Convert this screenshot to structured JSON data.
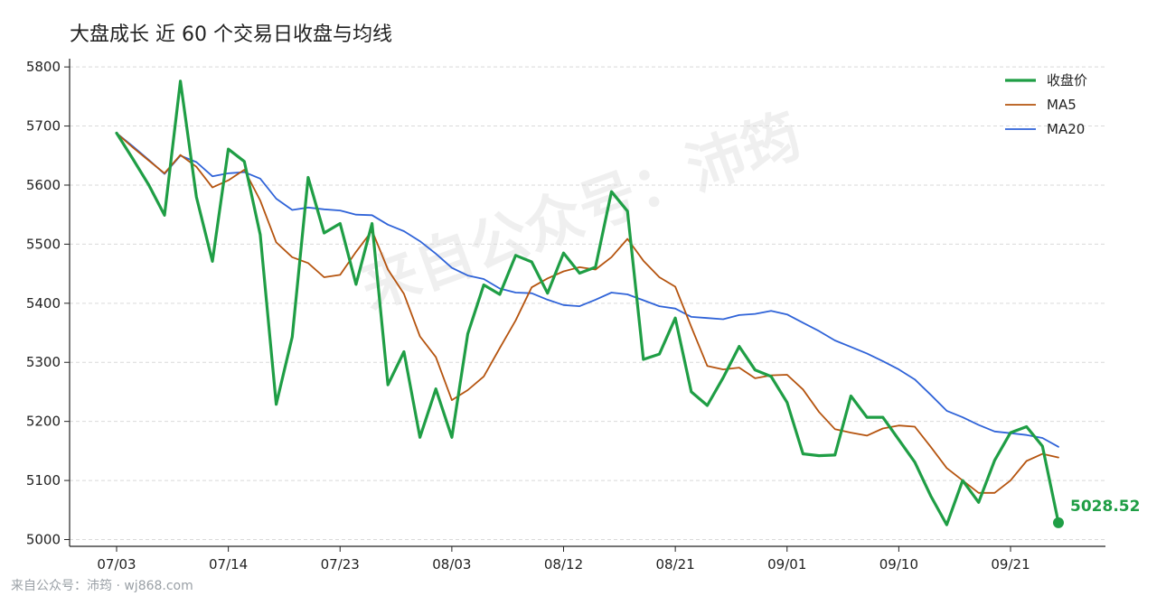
{
  "chart_data": {
    "type": "line",
    "title": "大盘成长 近 60 个交易日收盘与均线",
    "xlabel": "",
    "ylabel": "",
    "ylim": [
      4990,
      5815
    ],
    "yticks": [
      5000,
      5100,
      5200,
      5300,
      5400,
      5500,
      5600,
      5700,
      5800
    ],
    "xticks": [
      {
        "index": 0,
        "label": "07/03"
      },
      {
        "index": 7,
        "label": "07/14"
      },
      {
        "index": 14,
        "label": "07/23"
      },
      {
        "index": 21,
        "label": "08/03"
      },
      {
        "index": 28,
        "label": "08/12"
      },
      {
        "index": 35,
        "label": "08/21"
      },
      {
        "index": 42,
        "label": "09/01"
      },
      {
        "index": 49,
        "label": "09/10"
      },
      {
        "index": 56,
        "label": "09/21"
      }
    ],
    "grid": "horizontal dashed",
    "legend_position": "top-right",
    "series": [
      {
        "name": "收盘价",
        "color": "#1f9e45",
        "width": 3.2,
        "values": [
          5688,
          5645,
          5601,
          5549,
          5776,
          5580,
          5471,
          5661,
          5640,
          5516,
          5229,
          5343,
          5613,
          5519,
          5535,
          5432,
          5535,
          5262,
          5318,
          5173,
          5255,
          5173,
          5348,
          5431,
          5415,
          5481,
          5470,
          5417,
          5485,
          5451,
          5461,
          5589,
          5556,
          5305,
          5314,
          5375,
          5250,
          5227,
          5274,
          5327,
          5287,
          5276,
          5232,
          5145,
          5142,
          5143,
          5243,
          5207,
          5207,
          5169,
          5131,
          5074,
          5025,
          5100,
          5063,
          5134,
          5181,
          5191,
          5158,
          5028.52
        ]
      },
      {
        "name": "MA5",
        "color": "#b5540f",
        "width": 1.8,
        "values": [
          5688,
          5664,
          5642,
          5620,
          5651,
          5631,
          5596,
          5608,
          5626,
          5574,
          5503,
          5478,
          5468,
          5444,
          5448,
          5487,
          5523,
          5457,
          5416,
          5344,
          5309,
          5236,
          5253,
          5276,
          5324,
          5371,
          5427,
          5442,
          5454,
          5461,
          5457,
          5478,
          5509,
          5472,
          5444,
          5428,
          5360,
          5294,
          5288,
          5291,
          5273,
          5278,
          5279,
          5254,
          5216,
          5187,
          5181,
          5176,
          5188,
          5193,
          5191,
          5157,
          5121,
          5100,
          5079,
          5079,
          5100,
          5133,
          5145,
          5139
        ]
      },
      {
        "name": "MA20",
        "color": "#2f63d8",
        "width": 1.8,
        "values": [
          5688,
          5666,
          5643,
          5619,
          5650,
          5639,
          5615,
          5620,
          5622,
          5611,
          5577,
          5558,
          5562,
          5559,
          5557,
          5550,
          5549,
          5533,
          5522,
          5505,
          5484,
          5460,
          5447,
          5441,
          5425,
          5418,
          5417,
          5406,
          5397,
          5395,
          5406,
          5418,
          5415,
          5405,
          5395,
          5391,
          5377,
          5375,
          5373,
          5380,
          5382,
          5387,
          5381,
          5367,
          5353,
          5337,
          5326,
          5315,
          5302,
          5288,
          5271,
          5245,
          5218,
          5207,
          5194,
          5183,
          5180,
          5177,
          5172,
          5157
        ]
      }
    ],
    "end_point": {
      "value": 5028.52,
      "label": "5028.52",
      "color": "#1f9e45"
    }
  },
  "watermark": "来自公众号：沛筠",
  "footer": "来自公众号：沛筠 · wj868.com"
}
